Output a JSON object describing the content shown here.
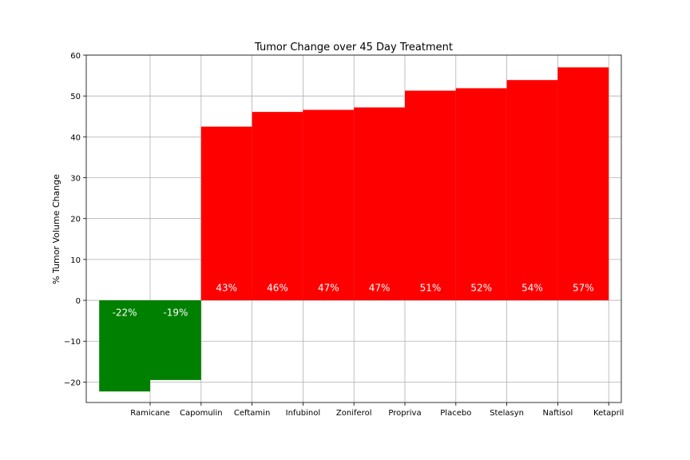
{
  "chart_data": {
    "type": "bar",
    "title": "Tumor Change over 45 Day Treatment",
    "xlabel": "",
    "ylabel": "% Tumor Volume Change",
    "ylim": [
      -25,
      60
    ],
    "yticks": [
      60,
      50,
      40,
      30,
      20,
      10,
      0,
      -10,
      -20
    ],
    "ytick_labels": [
      "60",
      "50",
      "40",
      "30",
      "20",
      "10",
      "0",
      "−10",
      "−20"
    ],
    "grid": true,
    "categories": [
      "Ramicane",
      "Capomulin",
      "Ceftamin",
      "Infubinol",
      "Zoniferol",
      "Propriva",
      "Placebo",
      "Stelasyn",
      "Naftisol",
      "Ketapril"
    ],
    "values": [
      -22.3,
      -19.5,
      42.5,
      46.1,
      46.6,
      47.2,
      51.3,
      51.9,
      53.9,
      57.0
    ],
    "data_labels": [
      "-22%",
      "-19%",
      "43%",
      "46%",
      "47%",
      "47%",
      "51%",
      "52%",
      "54%",
      "57%"
    ],
    "colors": {
      "positive": "#ff0000",
      "negative": "#008000",
      "label_text": "#ffffff",
      "grid": "#b0b0b0",
      "axis": "#000000"
    }
  }
}
